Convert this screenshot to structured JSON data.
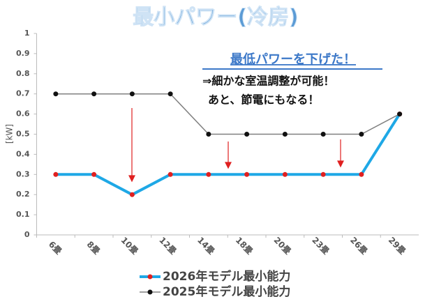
{
  "chart_data": {
    "type": "line",
    "title": "最小パワー(冷房)",
    "y_label": "[kW]",
    "annotations": [
      "最低パワーを下げた！",
      "⇒細かな室温調整が可能！",
      "あと、節電にもなる！"
    ],
    "categories": [
      "6畳",
      "8畳",
      "10畳",
      "12畳",
      "14畳",
      "18畳",
      "20畳",
      "23畳",
      "26畳",
      "29畳"
    ],
    "series": [
      {
        "name": "2026年モデル最小能力",
        "color": "#1ea8e6",
        "marker_color": "#e02020",
        "values": [
          0.3,
          0.3,
          0.2,
          0.3,
          0.3,
          0.3,
          0.3,
          0.3,
          0.3,
          0.6
        ]
      },
      {
        "name": "2025年モデル最小能力",
        "color": "#808080",
        "marker_color": "#111111",
        "values": [
          0.7,
          0.7,
          0.7,
          0.7,
          0.5,
          0.5,
          0.5,
          0.5,
          0.5,
          0.6
        ]
      }
    ],
    "ylim": [
      0,
      1
    ],
    "yticks": [
      0,
      0.1,
      0.2,
      0.3,
      0.4,
      0.5,
      0.6,
      0.7,
      0.8,
      0.9,
      1
    ],
    "grid": false
  }
}
